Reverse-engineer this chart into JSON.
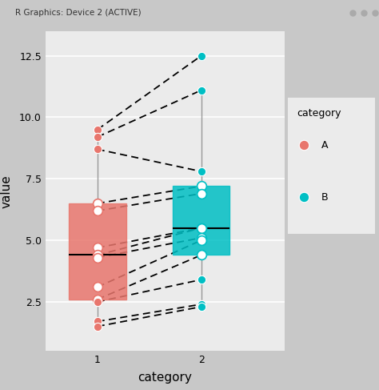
{
  "title_bar": "R Graphics: Device 2 (ACTIVE)",
  "xlabel": "category",
  "ylabel": "value",
  "plot_bg_color": "#ebebeb",
  "outer_bg_color": "#c8c8c8",
  "window_bar_color": "#d4d4d4",
  "A_values": [
    9.5,
    9.2,
    8.7,
    6.5,
    6.2,
    4.7,
    4.4,
    4.3,
    3.1,
    2.6,
    2.5,
    1.7,
    1.5
  ],
  "B_values": [
    12.5,
    11.1,
    7.8,
    7.2,
    6.9,
    5.5,
    5.5,
    5.1,
    5.0,
    4.4,
    3.4,
    2.4,
    2.3
  ],
  "color_A": "#E8766D",
  "color_B": "#00BFC4",
  "ylim": [
    0.5,
    13.5
  ],
  "yticks": [
    2.5,
    5.0,
    7.5,
    10.0,
    12.5
  ],
  "legend_title": "category",
  "point_size": 55,
  "box_width": 0.55
}
